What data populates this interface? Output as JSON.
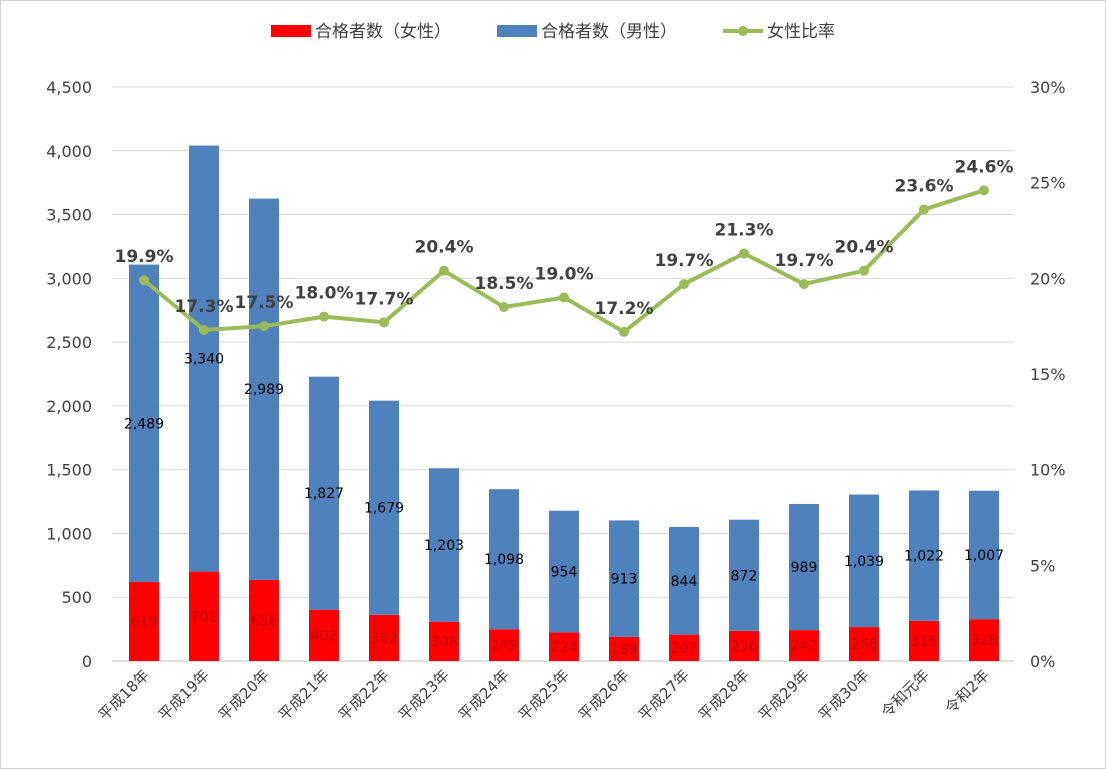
{
  "chart_data": {
    "type": "bar",
    "stacked": true,
    "categories": [
      "平成18年",
      "平成19年",
      "平成20年",
      "平成21年",
      "平成22年",
      "平成23年",
      "平成24年",
      "平成25年",
      "平成26年",
      "平成27年",
      "平成28年",
      "平成29年",
      "平成30年",
      "令和元年",
      "令和2年"
    ],
    "series": [
      {
        "name": "合格者数（女性）",
        "type": "bar",
        "axis": "left",
        "color": "#ff0000",
        "values": [
          619,
          701,
          636,
          402,
          362,
          308,
          249,
          224,
          189,
          207,
          236,
          242,
          266,
          315,
          328
        ]
      },
      {
        "name": "合格者数（男性）",
        "type": "bar",
        "axis": "left",
        "color": "#4f81bd",
        "values": [
          2489,
          3340,
          2989,
          1827,
          1679,
          1203,
          1098,
          954,
          913,
          844,
          872,
          989,
          1039,
          1022,
          1007
        ]
      },
      {
        "name": "女性比率",
        "type": "line",
        "axis": "right",
        "color": "#9bbb59",
        "unit": "%",
        "values": [
          19.9,
          17.3,
          17.5,
          18.0,
          17.7,
          20.4,
          18.5,
          19.0,
          17.2,
          19.7,
          21.3,
          19.7,
          20.4,
          23.6,
          24.6
        ]
      }
    ],
    "y_left": {
      "min": 0,
      "max": 4500,
      "ticks": [
        0,
        500,
        1000,
        1500,
        2000,
        2500,
        3000,
        3500,
        4000,
        4500
      ],
      "tick_labels": [
        "0",
        "500",
        "1,000",
        "1,500",
        "2,000",
        "2,500",
        "3,000",
        "3,500",
        "4,000",
        "4,500"
      ]
    },
    "y_right": {
      "min": 0,
      "max": 30,
      "ticks": [
        0,
        5,
        10,
        15,
        20,
        25,
        30
      ],
      "tick_labels": [
        "0%",
        "5%",
        "10%",
        "15%",
        "20%",
        "25%",
        "30%"
      ]
    },
    "grid": true,
    "legend": "top"
  }
}
